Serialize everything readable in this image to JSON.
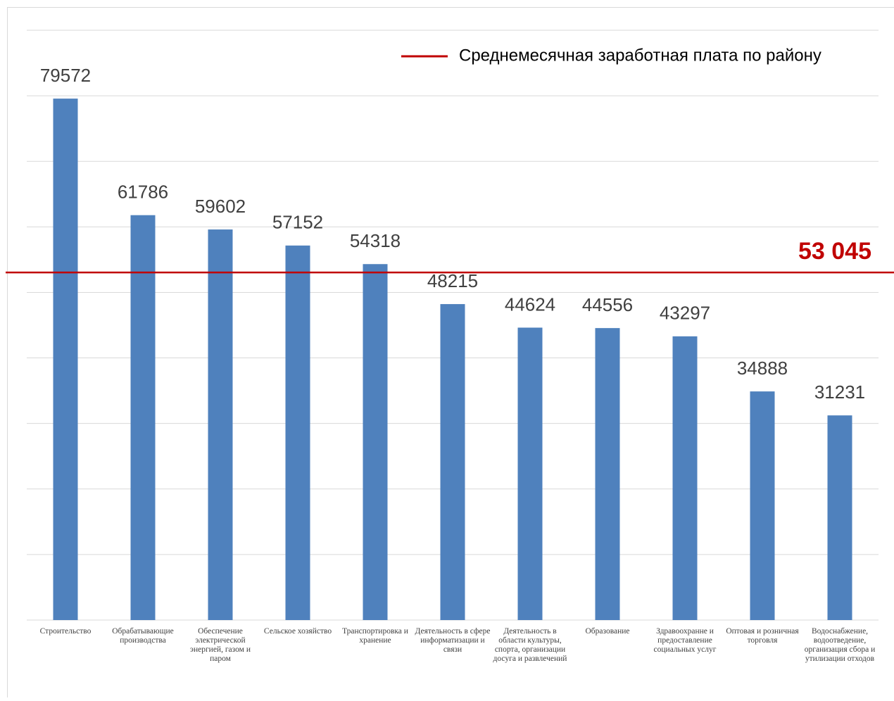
{
  "chart_data": {
    "type": "bar",
    "categories": [
      "Строительство",
      "Обрабатывающие производства",
      "Обеспечение электрической энергией, газом и паром",
      "Сельское хозяйство",
      "Транспортировка и хранение",
      "Деятельность в сфере информатизации и связи",
      "Деятельность в области культуры, спорта, организации досуга и развлечений",
      "Образование",
      "Здравоохранне и предоставление социальных услуг",
      "Оптовая и розничная торговля",
      "Водоснабжение, водоотведение, организация сбора и утилизации отходов"
    ],
    "values": [
      79572,
      61786,
      59602,
      57152,
      54318,
      48215,
      44624,
      44556,
      43297,
      34888,
      31231
    ],
    "color": "#4f81bd",
    "ylim": [
      0,
      90000
    ],
    "yticks": [
      0,
      10000,
      20000,
      30000,
      40000,
      50000,
      60000,
      70000,
      80000,
      90000
    ],
    "grid": true,
    "reference": {
      "name": "Среднемесячная заработная плата по району",
      "value": 53045,
      "label": "53 045",
      "color": "#c00000"
    }
  }
}
